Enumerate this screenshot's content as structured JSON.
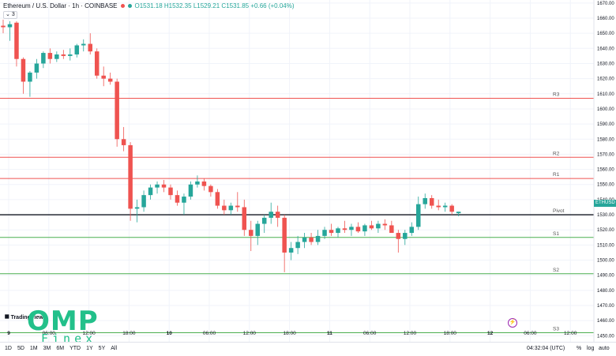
{
  "header": {
    "symbol": "Ethereum / U.S. Dollar · 1h · COINBASE",
    "open": "O1531.18",
    "high": "H1532.35",
    "low": "L1529.21",
    "close": "C1531.85",
    "change": "+0.66 (+0.04%)",
    "indicator_count": "3"
  },
  "price_tag": "ETHUSD  27:56",
  "footer": {
    "ranges": [
      "1D",
      "5D",
      "1M",
      "3M",
      "6M",
      "YTD",
      "1Y",
      "5Y",
      "All"
    ],
    "time": "04:32:04 (UTC)",
    "percent": "%",
    "log": "log",
    "auto": "auto"
  },
  "watermark": {
    "omp": "OMP",
    "finex": "Finex",
    "tv": "TradingView"
  },
  "colors": {
    "up": "#26a69a",
    "down": "#ef5350",
    "resistance": "#ef5350",
    "support": "#4caf50",
    "pivot": "#131722"
  },
  "chart_data": {
    "type": "candlestick",
    "ylim": [
      1446,
      1672
    ],
    "y_ticks": [
      1450,
      1460,
      1470,
      1480,
      1490,
      1500,
      1510,
      1520,
      1530,
      1540,
      1550,
      1560,
      1570,
      1580,
      1590,
      1600,
      1610,
      1620,
      1630,
      1640,
      1650,
      1660,
      1670
    ],
    "x_ticks": [
      "9",
      "06:00",
      "12:00",
      "18:00",
      "10",
      "06:00",
      "12:00",
      "18:00",
      "11",
      "06:00",
      "12:00",
      "18:00",
      "12",
      "06:00",
      "12:00"
    ],
    "levels": [
      {
        "name": "R3",
        "value": 1607,
        "kind": "resistance"
      },
      {
        "name": "R2",
        "value": 1568,
        "kind": "resistance"
      },
      {
        "name": "R1",
        "value": 1554,
        "kind": "resistance"
      },
      {
        "name": "Pivot",
        "value": 1530,
        "kind": "pivot"
      },
      {
        "name": "S1",
        "value": 1515,
        "kind": "support"
      },
      {
        "name": "S2",
        "value": 1491,
        "kind": "support"
      },
      {
        "name": "S3",
        "value": 1452,
        "kind": "support"
      }
    ],
    "candles": [
      {
        "o": 1655,
        "h": 1659,
        "l": 1650,
        "c": 1654
      },
      {
        "o": 1654,
        "h": 1658,
        "l": 1645,
        "c": 1656
      },
      {
        "o": 1657,
        "h": 1658,
        "l": 1628,
        "c": 1633
      },
      {
        "o": 1633,
        "h": 1634,
        "l": 1610,
        "c": 1618
      },
      {
        "o": 1618,
        "h": 1625,
        "l": 1608,
        "c": 1624
      },
      {
        "o": 1624,
        "h": 1633,
        "l": 1620,
        "c": 1630
      },
      {
        "o": 1630,
        "h": 1638,
        "l": 1627,
        "c": 1637
      },
      {
        "o": 1637,
        "h": 1640,
        "l": 1630,
        "c": 1633
      },
      {
        "o": 1633,
        "h": 1638,
        "l": 1631,
        "c": 1636
      },
      {
        "o": 1636,
        "h": 1639,
        "l": 1633,
        "c": 1635
      },
      {
        "o": 1635,
        "h": 1640,
        "l": 1632,
        "c": 1636
      },
      {
        "o": 1636,
        "h": 1643,
        "l": 1634,
        "c": 1642
      },
      {
        "o": 1642,
        "h": 1646,
        "l": 1638,
        "c": 1643
      },
      {
        "o": 1643,
        "h": 1650,
        "l": 1636,
        "c": 1638
      },
      {
        "o": 1638,
        "h": 1640,
        "l": 1620,
        "c": 1622
      },
      {
        "o": 1622,
        "h": 1628,
        "l": 1615,
        "c": 1620
      },
      {
        "o": 1620,
        "h": 1624,
        "l": 1616,
        "c": 1618
      },
      {
        "o": 1618,
        "h": 1620,
        "l": 1575,
        "c": 1580
      },
      {
        "o": 1580,
        "h": 1588,
        "l": 1572,
        "c": 1576
      },
      {
        "o": 1576,
        "h": 1578,
        "l": 1526,
        "c": 1534
      },
      {
        "o": 1534,
        "h": 1540,
        "l": 1525,
        "c": 1535
      },
      {
        "o": 1535,
        "h": 1546,
        "l": 1532,
        "c": 1543
      },
      {
        "o": 1543,
        "h": 1550,
        "l": 1540,
        "c": 1548
      },
      {
        "o": 1548,
        "h": 1552,
        "l": 1544,
        "c": 1550
      },
      {
        "o": 1550,
        "h": 1553,
        "l": 1545,
        "c": 1548
      },
      {
        "o": 1548,
        "h": 1550,
        "l": 1540,
        "c": 1543
      },
      {
        "o": 1543,
        "h": 1546,
        "l": 1536,
        "c": 1538
      },
      {
        "o": 1538,
        "h": 1544,
        "l": 1530,
        "c": 1542
      },
      {
        "o": 1542,
        "h": 1552,
        "l": 1540,
        "c": 1550
      },
      {
        "o": 1550,
        "h": 1556,
        "l": 1548,
        "c": 1552
      },
      {
        "o": 1552,
        "h": 1554,
        "l": 1546,
        "c": 1549
      },
      {
        "o": 1549,
        "h": 1550,
        "l": 1542,
        "c": 1545
      },
      {
        "o": 1545,
        "h": 1547,
        "l": 1534,
        "c": 1536
      },
      {
        "o": 1536,
        "h": 1540,
        "l": 1530,
        "c": 1533
      },
      {
        "o": 1533,
        "h": 1538,
        "l": 1530,
        "c": 1536
      },
      {
        "o": 1536,
        "h": 1545,
        "l": 1532,
        "c": 1535
      },
      {
        "o": 1535,
        "h": 1540,
        "l": 1516,
        "c": 1520
      },
      {
        "o": 1520,
        "h": 1526,
        "l": 1506,
        "c": 1516
      },
      {
        "o": 1516,
        "h": 1526,
        "l": 1510,
        "c": 1524
      },
      {
        "o": 1524,
        "h": 1530,
        "l": 1518,
        "c": 1528
      },
      {
        "o": 1528,
        "h": 1538,
        "l": 1524,
        "c": 1532
      },
      {
        "o": 1532,
        "h": 1536,
        "l": 1522,
        "c": 1528
      },
      {
        "o": 1528,
        "h": 1530,
        "l": 1492,
        "c": 1505
      },
      {
        "o": 1505,
        "h": 1512,
        "l": 1500,
        "c": 1508
      },
      {
        "o": 1508,
        "h": 1516,
        "l": 1504,
        "c": 1512
      },
      {
        "o": 1512,
        "h": 1518,
        "l": 1508,
        "c": 1515
      },
      {
        "o": 1515,
        "h": 1518,
        "l": 1510,
        "c": 1512
      },
      {
        "o": 1512,
        "h": 1520,
        "l": 1510,
        "c": 1516
      },
      {
        "o": 1516,
        "h": 1522,
        "l": 1514,
        "c": 1520
      },
      {
        "o": 1520,
        "h": 1524,
        "l": 1516,
        "c": 1518
      },
      {
        "o": 1518,
        "h": 1522,
        "l": 1515,
        "c": 1521
      },
      {
        "o": 1521,
        "h": 1526,
        "l": 1518,
        "c": 1520
      },
      {
        "o": 1520,
        "h": 1524,
        "l": 1516,
        "c": 1522
      },
      {
        "o": 1522,
        "h": 1525,
        "l": 1518,
        "c": 1519
      },
      {
        "o": 1519,
        "h": 1524,
        "l": 1516,
        "c": 1523
      },
      {
        "o": 1523,
        "h": 1526,
        "l": 1520,
        "c": 1521
      },
      {
        "o": 1521,
        "h": 1526,
        "l": 1518,
        "c": 1524
      },
      {
        "o": 1524,
        "h": 1527,
        "l": 1520,
        "c": 1523
      },
      {
        "o": 1523,
        "h": 1526,
        "l": 1520,
        "c": 1518
      },
      {
        "o": 1518,
        "h": 1520,
        "l": 1505,
        "c": 1514
      },
      {
        "o": 1514,
        "h": 1520,
        "l": 1510,
        "c": 1518
      },
      {
        "o": 1518,
        "h": 1525,
        "l": 1516,
        "c": 1522
      },
      {
        "o": 1522,
        "h": 1542,
        "l": 1520,
        "c": 1537
      },
      {
        "o": 1537,
        "h": 1544,
        "l": 1534,
        "c": 1541
      },
      {
        "o": 1541,
        "h": 1543,
        "l": 1534,
        "c": 1536
      },
      {
        "o": 1536,
        "h": 1540,
        "l": 1533,
        "c": 1535
      },
      {
        "o": 1535,
        "h": 1538,
        "l": 1532,
        "c": 1536
      },
      {
        "o": 1536,
        "h": 1537,
        "l": 1530,
        "c": 1532
      },
      {
        "o": 1531,
        "h": 1532,
        "l": 1529,
        "c": 1532
      }
    ]
  }
}
